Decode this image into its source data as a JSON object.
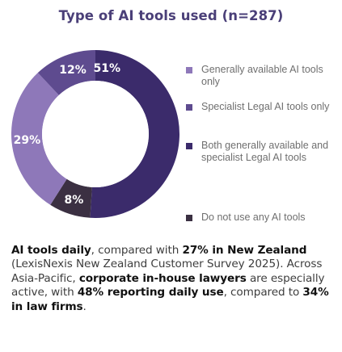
{
  "title": "Type of AI tools used (n=287)",
  "chart_data": {
    "type": "pie",
    "variant": "donut",
    "title": "Type of AI tools used (n=287)",
    "unit": "%",
    "slices": [
      {
        "label": "Both generally available and specialist Legal AI tools",
        "value": 51,
        "display": "51%",
        "color": "#3b2b6b"
      },
      {
        "label": "Do not use any AI tools",
        "value": 8,
        "display": "8%",
        "color": "#3b3042"
      },
      {
        "label": "Generally available AI tools only",
        "value": 29,
        "display": "29%",
        "color": "#8e78b9"
      },
      {
        "label": "Specialist Legal AI tools only",
        "value": 12,
        "display": "12%",
        "color": "#5e4b8f"
      }
    ],
    "legend_position": "right"
  },
  "legend": [
    {
      "label": "Generally available AI tools only",
      "color": "#8e78b9"
    },
    {
      "label": "Specialist Legal AI tools only",
      "color": "#5e4b8f"
    },
    {
      "label": "Both generally available and specialist Legal AI tools",
      "color": "#3b2b6b"
    },
    {
      "label": "Do not use any AI tools",
      "color": "#3b3042"
    }
  ],
  "paragraph": {
    "s1_bold": "AI tools daily",
    "s2": ", compared with ",
    "s3_bold": "27% in New Zealand",
    "s4": " (LexisNexis New Zealand Customer Survey 2025). Across Asia-Pacific, ",
    "s5_bold": "corporate in-house lawyers",
    "s6": " are especially active, with ",
    "s7_bold": "48% reporting daily use",
    "s8": ", compared to ",
    "s9_bold": "34% in law firms",
    "s10": "."
  }
}
